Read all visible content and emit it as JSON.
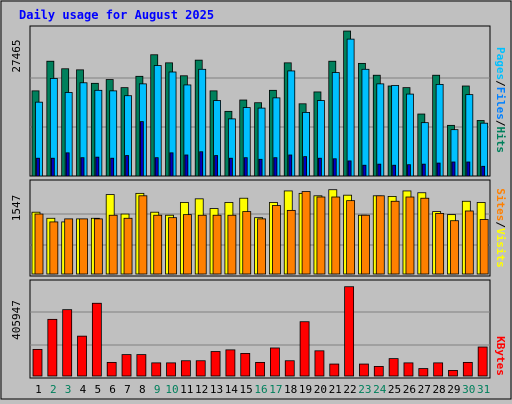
{
  "title": "Daily usage for August 2025",
  "colors": {
    "background": "#c0c0c0",
    "panel": "#c0c0c0",
    "gridline": "#808080",
    "title": "#0000ff",
    "hits": "#00805c",
    "files": "#0080ff",
    "pages": "#00c0ff",
    "sites": "#ff8000",
    "visits": "#ffff00",
    "kbytes": "#ff0000",
    "weekday_label": "#000000",
    "weekend_label": "#00805c",
    "separator": "#000000"
  },
  "chart_data": [
    {
      "type": "bar",
      "name": "hits-files-pages",
      "categories": [
        "1",
        "2",
        "3",
        "4",
        "5",
        "6",
        "7",
        "8",
        "9",
        "10",
        "11",
        "12",
        "13",
        "14",
        "15",
        "16",
        "17",
        "18",
        "19",
        "20",
        "21",
        "22",
        "23",
        "24",
        "25",
        "26",
        "27",
        "28",
        "29",
        "30",
        "31"
      ],
      "y_max_label": "27465",
      "ylim": [
        0,
        27465
      ],
      "series": [
        {
          "name": "Hits",
          "values": [
            15800,
            21300,
            19900,
            19700,
            17200,
            17900,
            16400,
            18500,
            22500,
            21000,
            18600,
            21500,
            15800,
            12000,
            14100,
            13600,
            15900,
            21000,
            13400,
            15600,
            21300,
            26900,
            20900,
            18700,
            16700,
            16400,
            11500,
            18700,
            9400,
            16700,
            10300
          ]
        },
        {
          "name": "Files",
          "values": [
            13700,
            18100,
            15500,
            17300,
            15900,
            15800,
            14900,
            17100,
            20500,
            19300,
            16900,
            19800,
            14000,
            10600,
            12700,
            12600,
            14500,
            19500,
            11800,
            14000,
            19200,
            25400,
            19800,
            17100,
            16800,
            15200,
            9900,
            17000,
            8600,
            15100,
            9800
          ]
        },
        {
          "name": "Pages",
          "values": [
            3300,
            3300,
            4300,
            3400,
            3500,
            3300,
            3800,
            10100,
            3400,
            4300,
            3900,
            4500,
            3800,
            3300,
            3400,
            3100,
            3400,
            3900,
            3600,
            3300,
            3200,
            2800,
            2000,
            2200,
            2000,
            2100,
            2200,
            2400,
            2600,
            2600,
            1800
          ]
        }
      ]
    },
    {
      "type": "bar",
      "name": "sites-visits",
      "categories": [
        "1",
        "2",
        "3",
        "4",
        "5",
        "6",
        "7",
        "8",
        "9",
        "10",
        "11",
        "12",
        "13",
        "14",
        "15",
        "16",
        "17",
        "18",
        "19",
        "20",
        "21",
        "22",
        "23",
        "24",
        "25",
        "26",
        "27",
        "28",
        "29",
        "30",
        "31"
      ],
      "y_max_label": "1547",
      "ylim": [
        0,
        1547
      ],
      "series": [
        {
          "name": "Visits",
          "values": [
            1050,
            950,
            890,
            940,
            950,
            1340,
            1020,
            1360,
            1050,
            1000,
            1210,
            1270,
            1110,
            1210,
            1280,
            960,
            1210,
            1400,
            1360,
            1320,
            1420,
            1330,
            1000,
            1320,
            1310,
            1400,
            1370,
            1060,
            1010,
            1230,
            1210
          ]
        },
        {
          "name": "Sites",
          "values": [
            1020,
            890,
            940,
            940,
            940,
            1000,
            950,
            1320,
            1000,
            960,
            1010,
            1000,
            1000,
            1000,
            1060,
            940,
            1160,
            1080,
            1390,
            1300,
            1300,
            1240,
            1000,
            1320,
            1230,
            1300,
            1280,
            1030,
            910,
            1070,
            930
          ]
        }
      ]
    },
    {
      "type": "bar",
      "name": "kbytes",
      "categories": [
        "1",
        "2",
        "3",
        "4",
        "5",
        "6",
        "7",
        "8",
        "9",
        "10",
        "11",
        "12",
        "13",
        "14",
        "15",
        "16",
        "17",
        "18",
        "19",
        "20",
        "21",
        "22",
        "23",
        "24",
        "25",
        "26",
        "27",
        "28",
        "29",
        "30",
        "31"
      ],
      "y_max_label": "405947",
      "ylim": [
        0,
        405947
      ],
      "series": [
        {
          "name": "KBytes",
          "values": [
            121000,
            248000,
            289000,
            177000,
            316000,
            66000,
            99000,
            99000,
            64000,
            64000,
            73000,
            73000,
            112000,
            119000,
            104000,
            66000,
            127000,
            73000,
            238000,
            115000,
            59000,
            386000,
            59000,
            49000,
            82000,
            64000,
            40000,
            64000,
            32000,
            66000,
            131000
          ]
        }
      ]
    }
  ],
  "legends": {
    "top": [
      {
        "text": "Pages",
        "color": "#00c0ff"
      },
      {
        "text": "/",
        "color": "#000000"
      },
      {
        "text": "Files",
        "color": "#0080ff"
      },
      {
        "text": "/",
        "color": "#000000"
      },
      {
        "text": "Hits",
        "color": "#00805c"
      }
    ],
    "middle": [
      {
        "text": "Sites",
        "color": "#ff8000"
      },
      {
        "text": "/",
        "color": "#000000"
      },
      {
        "text": "Visits",
        "color": "#ffff00"
      }
    ],
    "bottom": [
      {
        "text": "KBytes",
        "color": "#ff0000"
      }
    ]
  },
  "day_labels": [
    {
      "text": "1",
      "weekend": false
    },
    {
      "text": "2",
      "weekend": true
    },
    {
      "text": "3",
      "weekend": true
    },
    {
      "text": "4",
      "weekend": false
    },
    {
      "text": "5",
      "weekend": false
    },
    {
      "text": "6",
      "weekend": false
    },
    {
      "text": "7",
      "weekend": false
    },
    {
      "text": "8",
      "weekend": false
    },
    {
      "text": "9",
      "weekend": true
    },
    {
      "text": "10",
      "weekend": true
    },
    {
      "text": "11",
      "weekend": false
    },
    {
      "text": "12",
      "weekend": false
    },
    {
      "text": "13",
      "weekend": false
    },
    {
      "text": "14",
      "weekend": false
    },
    {
      "text": "15",
      "weekend": false
    },
    {
      "text": "16",
      "weekend": true
    },
    {
      "text": "17",
      "weekend": true
    },
    {
      "text": "18",
      "weekend": false
    },
    {
      "text": "19",
      "weekend": false
    },
    {
      "text": "20",
      "weekend": false
    },
    {
      "text": "21",
      "weekend": false
    },
    {
      "text": "22",
      "weekend": false
    },
    {
      "text": "23",
      "weekend": true
    },
    {
      "text": "24",
      "weekend": true
    },
    {
      "text": "25",
      "weekend": false
    },
    {
      "text": "26",
      "weekend": false
    },
    {
      "text": "27",
      "weekend": false
    },
    {
      "text": "28",
      "weekend": false
    },
    {
      "text": "29",
      "weekend": false
    },
    {
      "text": "30",
      "weekend": true
    },
    {
      "text": "31",
      "weekend": true
    }
  ]
}
